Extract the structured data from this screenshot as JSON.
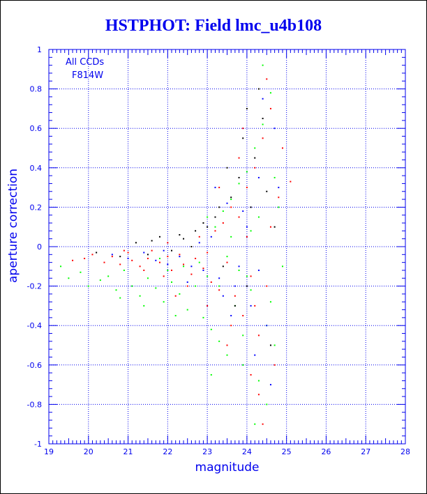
{
  "colors": {
    "axis": "#0000ee",
    "title": "#0000ee"
  },
  "chart_data": {
    "type": "scatter",
    "title": "HSTPHOT: Field lmc_u4b108",
    "xlabel": "magnitude",
    "ylabel": "aperture correction",
    "xlim": [
      19,
      28
    ],
    "ylim": [
      -1,
      1
    ],
    "grid": true,
    "x_ticks": [
      "19",
      "20",
      "21",
      "22",
      "23",
      "24",
      "25",
      "26",
      "27",
      "28"
    ],
    "y_ticks": [
      "-1",
      "-0.8",
      "-0.6",
      "-0.4",
      "-0.2",
      "0",
      "0.2",
      "0.4",
      "0.6",
      "0.8",
      "1"
    ],
    "annotations": [
      "All CCDs",
      "F814W"
    ],
    "series": [
      {
        "color": "#ff0000",
        "points": [
          [
            19.6,
            -0.07
          ],
          [
            19.9,
            -0.06
          ],
          [
            20.1,
            -0.04
          ],
          [
            20.4,
            -0.08
          ],
          [
            20.6,
            -0.05
          ],
          [
            20.8,
            -0.09
          ],
          [
            21.0,
            -0.03
          ],
          [
            21.1,
            -0.07
          ],
          [
            21.3,
            -0.1
          ],
          [
            21.5,
            -0.06
          ],
          [
            21.6,
            -0.02
          ],
          [
            21.8,
            -0.08
          ],
          [
            22.0,
            -0.05
          ],
          [
            22.1,
            -0.12
          ],
          [
            22.3,
            -0.04
          ],
          [
            22.4,
            -0.09
          ],
          [
            22.6,
            -0.14
          ],
          [
            22.7,
            -0.06
          ],
          [
            22.9,
            -0.11
          ],
          [
            23.0,
            -0.03
          ],
          [
            23.1,
            -0.18
          ],
          [
            23.2,
            0.08
          ],
          [
            23.3,
            -0.22
          ],
          [
            23.4,
            0.12
          ],
          [
            23.5,
            -0.08
          ],
          [
            23.6,
            0.2
          ],
          [
            23.7,
            -0.25
          ],
          [
            23.8,
            0.15
          ],
          [
            23.9,
            -0.35
          ],
          [
            24.0,
            0.3
          ],
          [
            24.1,
            -0.15
          ],
          [
            24.2,
            0.4
          ],
          [
            24.3,
            -0.45
          ],
          [
            24.4,
            0.55
          ],
          [
            24.5,
            -0.2
          ],
          [
            24.6,
            0.7
          ],
          [
            24.7,
            -0.6
          ],
          [
            24.8,
            0.25
          ],
          [
            24.3,
            -0.75
          ],
          [
            24.5,
            0.85
          ],
          [
            23.5,
            -0.5
          ],
          [
            23.8,
            0.45
          ],
          [
            24.1,
            -0.65
          ],
          [
            24.6,
            0.1
          ],
          [
            22.8,
            0.05
          ],
          [
            22.5,
            -0.2
          ],
          [
            21.9,
            -0.15
          ],
          [
            23.0,
            -0.3
          ],
          [
            23.3,
            0.3
          ],
          [
            24.9,
            0.5
          ],
          [
            25.1,
            0.33
          ],
          [
            24.4,
            -0.9
          ],
          [
            23.9,
            0.6
          ],
          [
            24.2,
            -0.3
          ],
          [
            22.2,
            -0.25
          ],
          [
            23.6,
            -0.4
          ],
          [
            24.0,
            0.05
          ],
          [
            21.4,
            -0.12
          ],
          [
            20.9,
            -0.02
          ],
          [
            22.0,
            0.02
          ]
        ]
      },
      {
        "color": "#00ff00",
        "points": [
          [
            19.3,
            -0.1
          ],
          [
            19.5,
            -0.16
          ],
          [
            19.8,
            -0.13
          ],
          [
            20.0,
            -0.2
          ],
          [
            20.3,
            -0.17
          ],
          [
            20.5,
            -0.15
          ],
          [
            20.7,
            -0.22
          ],
          [
            20.9,
            -0.12
          ],
          [
            21.1,
            -0.2
          ],
          [
            21.3,
            -0.25
          ],
          [
            21.5,
            -0.16
          ],
          [
            21.7,
            -0.21
          ],
          [
            21.9,
            -0.28
          ],
          [
            22.1,
            -0.18
          ],
          [
            22.3,
            -0.24
          ],
          [
            22.5,
            -0.32
          ],
          [
            22.7,
            -0.2
          ],
          [
            22.9,
            -0.36
          ],
          [
            23.0,
            -0.15
          ],
          [
            23.1,
            -0.42
          ],
          [
            23.2,
            0.1
          ],
          [
            23.3,
            -0.48
          ],
          [
            23.4,
            0.18
          ],
          [
            23.5,
            -0.55
          ],
          [
            23.6,
            0.24
          ],
          [
            23.7,
            -0.3
          ],
          [
            23.8,
            0.32
          ],
          [
            23.9,
            -0.6
          ],
          [
            24.0,
            0.38
          ],
          [
            24.1,
            -0.22
          ],
          [
            24.2,
            0.5
          ],
          [
            24.3,
            -0.68
          ],
          [
            24.4,
            0.62
          ],
          [
            24.5,
            -0.4
          ],
          [
            24.6,
            0.78
          ],
          [
            24.7,
            -0.5
          ],
          [
            24.8,
            0.2
          ],
          [
            24.4,
            0.92
          ],
          [
            24.5,
            -0.8
          ],
          [
            23.5,
            -0.05
          ],
          [
            23.8,
            -0.12
          ],
          [
            24.1,
            0.08
          ],
          [
            24.6,
            -0.28
          ],
          [
            22.8,
            -0.08
          ],
          [
            22.4,
            -0.1
          ],
          [
            21.8,
            -0.06
          ],
          [
            23.0,
            0.15
          ],
          [
            23.3,
            -0.2
          ],
          [
            24.9,
            -0.1
          ],
          [
            24.3,
            0.15
          ],
          [
            23.9,
            -0.45
          ],
          [
            24.2,
            -0.9
          ],
          [
            22.2,
            -0.35
          ],
          [
            23.6,
            0.05
          ],
          [
            24.0,
            -0.15
          ],
          [
            21.4,
            -0.3
          ],
          [
            20.8,
            -0.26
          ],
          [
            22.0,
            -0.12
          ],
          [
            24.7,
            0.35
          ],
          [
            23.1,
            -0.65
          ]
        ]
      },
      {
        "color": "#0000ff",
        "points": [
          [
            20.6,
            -0.04
          ],
          [
            21.0,
            -0.06
          ],
          [
            21.4,
            -0.03
          ],
          [
            21.7,
            -0.07
          ],
          [
            22.0,
            -0.09
          ],
          [
            22.3,
            -0.05
          ],
          [
            22.6,
            -0.1
          ],
          [
            22.9,
            -0.12
          ],
          [
            23.1,
            0.05
          ],
          [
            23.3,
            -0.16
          ],
          [
            23.5,
            0.22
          ],
          [
            23.7,
            -0.2
          ],
          [
            23.9,
            0.18
          ],
          [
            24.1,
            -0.3
          ],
          [
            24.3,
            0.35
          ],
          [
            24.5,
            -0.4
          ],
          [
            24.7,
            0.6
          ],
          [
            24.2,
            -0.55
          ],
          [
            24.4,
            0.75
          ],
          [
            23.8,
            -0.1
          ],
          [
            23.2,
            0.3
          ],
          [
            22.8,
            0.02
          ],
          [
            24.6,
            -0.7
          ],
          [
            24.0,
            0.1
          ],
          [
            23.6,
            -0.35
          ],
          [
            24.8,
            0.3
          ],
          [
            22.5,
            -0.18
          ],
          [
            23.4,
            -0.25
          ],
          [
            24.3,
            -0.12
          ],
          [
            21.9,
            -0.02
          ]
        ]
      },
      {
        "color": "#000000",
        "points": [
          [
            20.2,
            -0.03
          ],
          [
            20.8,
            -0.05
          ],
          [
            21.2,
            0.02
          ],
          [
            21.5,
            -0.04
          ],
          [
            21.8,
            0.05
          ],
          [
            22.1,
            -0.02
          ],
          [
            22.4,
            0.04
          ],
          [
            22.7,
            0.08
          ],
          [
            23.0,
            0.1
          ],
          [
            23.2,
            0.15
          ],
          [
            23.4,
            -0.1
          ],
          [
            23.6,
            0.25
          ],
          [
            23.8,
            0.35
          ],
          [
            24.0,
            -0.2
          ],
          [
            24.2,
            0.45
          ],
          [
            24.4,
            0.65
          ],
          [
            24.6,
            -0.5
          ],
          [
            24.3,
            0.8
          ],
          [
            23.9,
            0.55
          ],
          [
            23.5,
            0.4
          ],
          [
            22.9,
            0.12
          ],
          [
            23.7,
            -0.3
          ],
          [
            24.1,
            0.2
          ],
          [
            24.5,
            0.28
          ],
          [
            22.6,
            0.0
          ],
          [
            21.6,
            0.03
          ],
          [
            24.7,
            0.1
          ],
          [
            23.3,
            0.2
          ],
          [
            24.0,
            0.7
          ],
          [
            22.3,
            0.06
          ]
        ]
      }
    ]
  }
}
